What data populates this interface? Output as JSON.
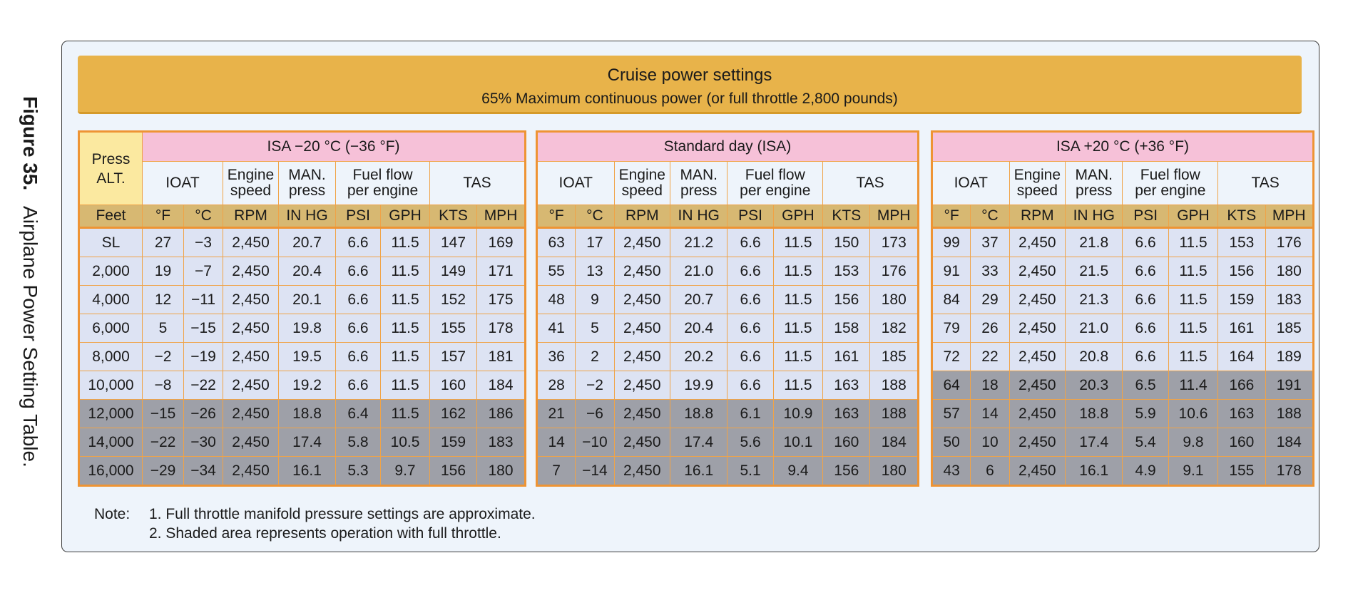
{
  "figure": {
    "number": "Figure 35.",
    "title": "Airplane Power Setting Table."
  },
  "banner": {
    "title": "Cruise power settings",
    "subtitle": "65% Maximum continuous power (or full throttle 2,800 pounds)"
  },
  "press_alt_header": "Press ALT.",
  "press_alt_unit": "Feet",
  "column_headers": [
    "IOAT",
    "Engine speed",
    "MAN. press",
    "Fuel flow per engine",
    "TAS"
  ],
  "units": [
    "°F",
    "°C",
    "RPM",
    "IN HG",
    "PSI",
    "GPH",
    "KTS",
    "MPH"
  ],
  "altitudes": [
    "SL",
    "2,000",
    "4,000",
    "6,000",
    "8,000",
    "10,000",
    "12,000",
    "14,000",
    "16,000"
  ],
  "sections": [
    {
      "title": "ISA −20 °C (−36 °F)",
      "full_throttle_from_row": 6,
      "rows": [
        [
          "27",
          "−3",
          "2,450",
          "20.7",
          "6.6",
          "11.5",
          "147",
          "169"
        ],
        [
          "19",
          "−7",
          "2,450",
          "20.4",
          "6.6",
          "11.5",
          "149",
          "171"
        ],
        [
          "12",
          "−11",
          "2,450",
          "20.1",
          "6.6",
          "11.5",
          "152",
          "175"
        ],
        [
          "5",
          "−15",
          "2,450",
          "19.8",
          "6.6",
          "11.5",
          "155",
          "178"
        ],
        [
          "−2",
          "−19",
          "2,450",
          "19.5",
          "6.6",
          "11.5",
          "157",
          "181"
        ],
        [
          "−8",
          "−22",
          "2,450",
          "19.2",
          "6.6",
          "11.5",
          "160",
          "184"
        ],
        [
          "−15",
          "−26",
          "2,450",
          "18.8",
          "6.4",
          "11.5",
          "162",
          "186"
        ],
        [
          "−22",
          "−30",
          "2,450",
          "17.4",
          "5.8",
          "10.5",
          "159",
          "183"
        ],
        [
          "−29",
          "−34",
          "2,450",
          "16.1",
          "5.3",
          "9.7",
          "156",
          "180"
        ]
      ]
    },
    {
      "title": "Standard day (ISA)",
      "full_throttle_from_row": 6,
      "rows": [
        [
          "63",
          "17",
          "2,450",
          "21.2",
          "6.6",
          "11.5",
          "150",
          "173"
        ],
        [
          "55",
          "13",
          "2,450",
          "21.0",
          "6.6",
          "11.5",
          "153",
          "176"
        ],
        [
          "48",
          "9",
          "2,450",
          "20.7",
          "6.6",
          "11.5",
          "156",
          "180"
        ],
        [
          "41",
          "5",
          "2,450",
          "20.4",
          "6.6",
          "11.5",
          "158",
          "182"
        ],
        [
          "36",
          "2",
          "2,450",
          "20.2",
          "6.6",
          "11.5",
          "161",
          "185"
        ],
        [
          "28",
          "−2",
          "2,450",
          "19.9",
          "6.6",
          "11.5",
          "163",
          "188"
        ],
        [
          "21",
          "−6",
          "2,450",
          "18.8",
          "6.1",
          "10.9",
          "163",
          "188"
        ],
        [
          "14",
          "−10",
          "2,450",
          "17.4",
          "5.6",
          "10.1",
          "160",
          "184"
        ],
        [
          "7",
          "−14",
          "2,450",
          "16.1",
          "5.1",
          "9.4",
          "156",
          "180"
        ]
      ]
    },
    {
      "title": "ISA +20 °C (+36 °F)",
      "full_throttle_from_row": 5,
      "rows": [
        [
          "99",
          "37",
          "2,450",
          "21.8",
          "6.6",
          "11.5",
          "153",
          "176"
        ],
        [
          "91",
          "33",
          "2,450",
          "21.5",
          "6.6",
          "11.5",
          "156",
          "180"
        ],
        [
          "84",
          "29",
          "2,450",
          "21.3",
          "6.6",
          "11.5",
          "159",
          "183"
        ],
        [
          "79",
          "26",
          "2,450",
          "21.0",
          "6.6",
          "11.5",
          "161",
          "185"
        ],
        [
          "72",
          "22",
          "2,450",
          "20.8",
          "6.6",
          "11.5",
          "164",
          "189"
        ],
        [
          "64",
          "18",
          "2,450",
          "20.3",
          "6.5",
          "11.4",
          "166",
          "191"
        ],
        [
          "57",
          "14",
          "2,450",
          "18.8",
          "5.9",
          "10.6",
          "163",
          "188"
        ],
        [
          "50",
          "10",
          "2,450",
          "17.4",
          "5.4",
          "9.8",
          "160",
          "184"
        ],
        [
          "43",
          "6",
          "2,450",
          "16.1",
          "4.9",
          "9.1",
          "155",
          "178"
        ]
      ]
    }
  ],
  "note": {
    "label": "Note:",
    "lines": [
      "1. Full throttle manifold pressure settings are approximate.",
      "2. Shaded area represents operation with full throttle."
    ]
  },
  "colors": {
    "banner": "#e8b34a",
    "section_header": "#f6c1d8",
    "unit_row": "#d7b872",
    "press_alt_header": "#fbe9a0",
    "normal_cell": "#dde3f3",
    "full_throttle_cell": "#9ea0a8",
    "grid_border": "#ee9434"
  }
}
